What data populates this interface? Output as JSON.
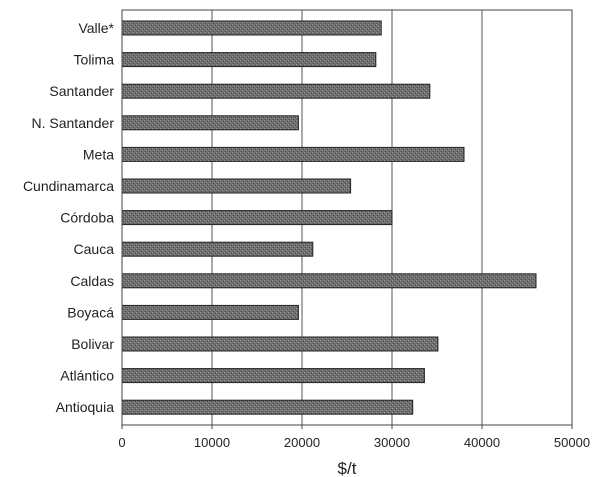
{
  "chart_data": {
    "type": "bar",
    "orientation": "horizontal",
    "categories": [
      "Valle*",
      "Tolima",
      "Santander",
      "N. Santander",
      "Meta",
      "Cundinamarca",
      "Córdoba",
      "Cauca",
      "Caldas",
      "Boyacá",
      "Bolivar",
      "Atlántico",
      "Antioquia"
    ],
    "values": [
      28800,
      28200,
      34200,
      19600,
      38000,
      25400,
      30000,
      21200,
      46000,
      19600,
      35100,
      33600,
      32300
    ],
    "title": "",
    "xlabel": "$/t",
    "ylabel": "",
    "xlim": [
      0,
      50000
    ],
    "xticks": [
      0,
      10000,
      20000,
      30000,
      40000,
      50000
    ],
    "xtick_labels": [
      "0",
      "10000",
      "20000",
      "30000",
      "40000",
      "50000"
    ],
    "grid": "vertical at each x tick",
    "legend": "none",
    "colors": {
      "bar_fill": "#6f6f6f",
      "bar_stroke": "#222222",
      "grid": "#555555",
      "frame": "#444444"
    }
  }
}
